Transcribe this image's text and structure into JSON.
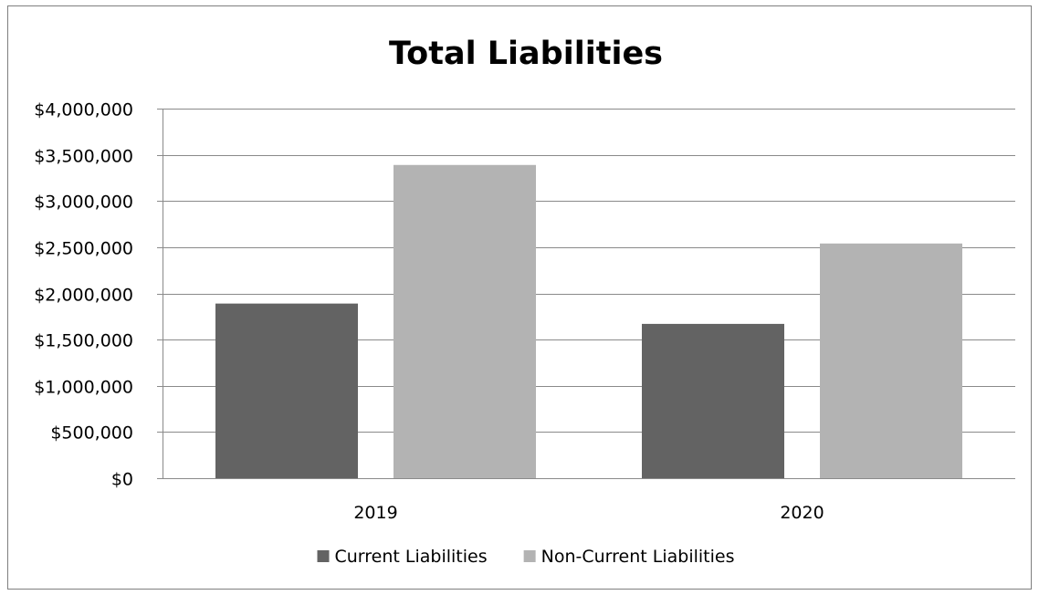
{
  "chart_data": {
    "type": "bar",
    "title": "Total Liabilities",
    "categories": [
      "2019",
      "2020"
    ],
    "series": [
      {
        "name": "Current Liabilities",
        "color": "#636363",
        "values": [
          1890000,
          1670000
        ]
      },
      {
        "name": "Non-Current Liabilities",
        "color": "#b3b3b3",
        "values": [
          3390000,
          2540000
        ]
      }
    ],
    "ylim": [
      0,
      4000000
    ],
    "ytick_step": 500000,
    "yticks": [
      "$0",
      "$500,000",
      "$1,000,000",
      "$1,500,000",
      "$2,000,000",
      "$2,500,000",
      "$3,000,000",
      "$3,500,000",
      "$4,000,000"
    ],
    "grid": true,
    "gridline_color": "#8a8a8a",
    "legend_position": "bottom"
  }
}
